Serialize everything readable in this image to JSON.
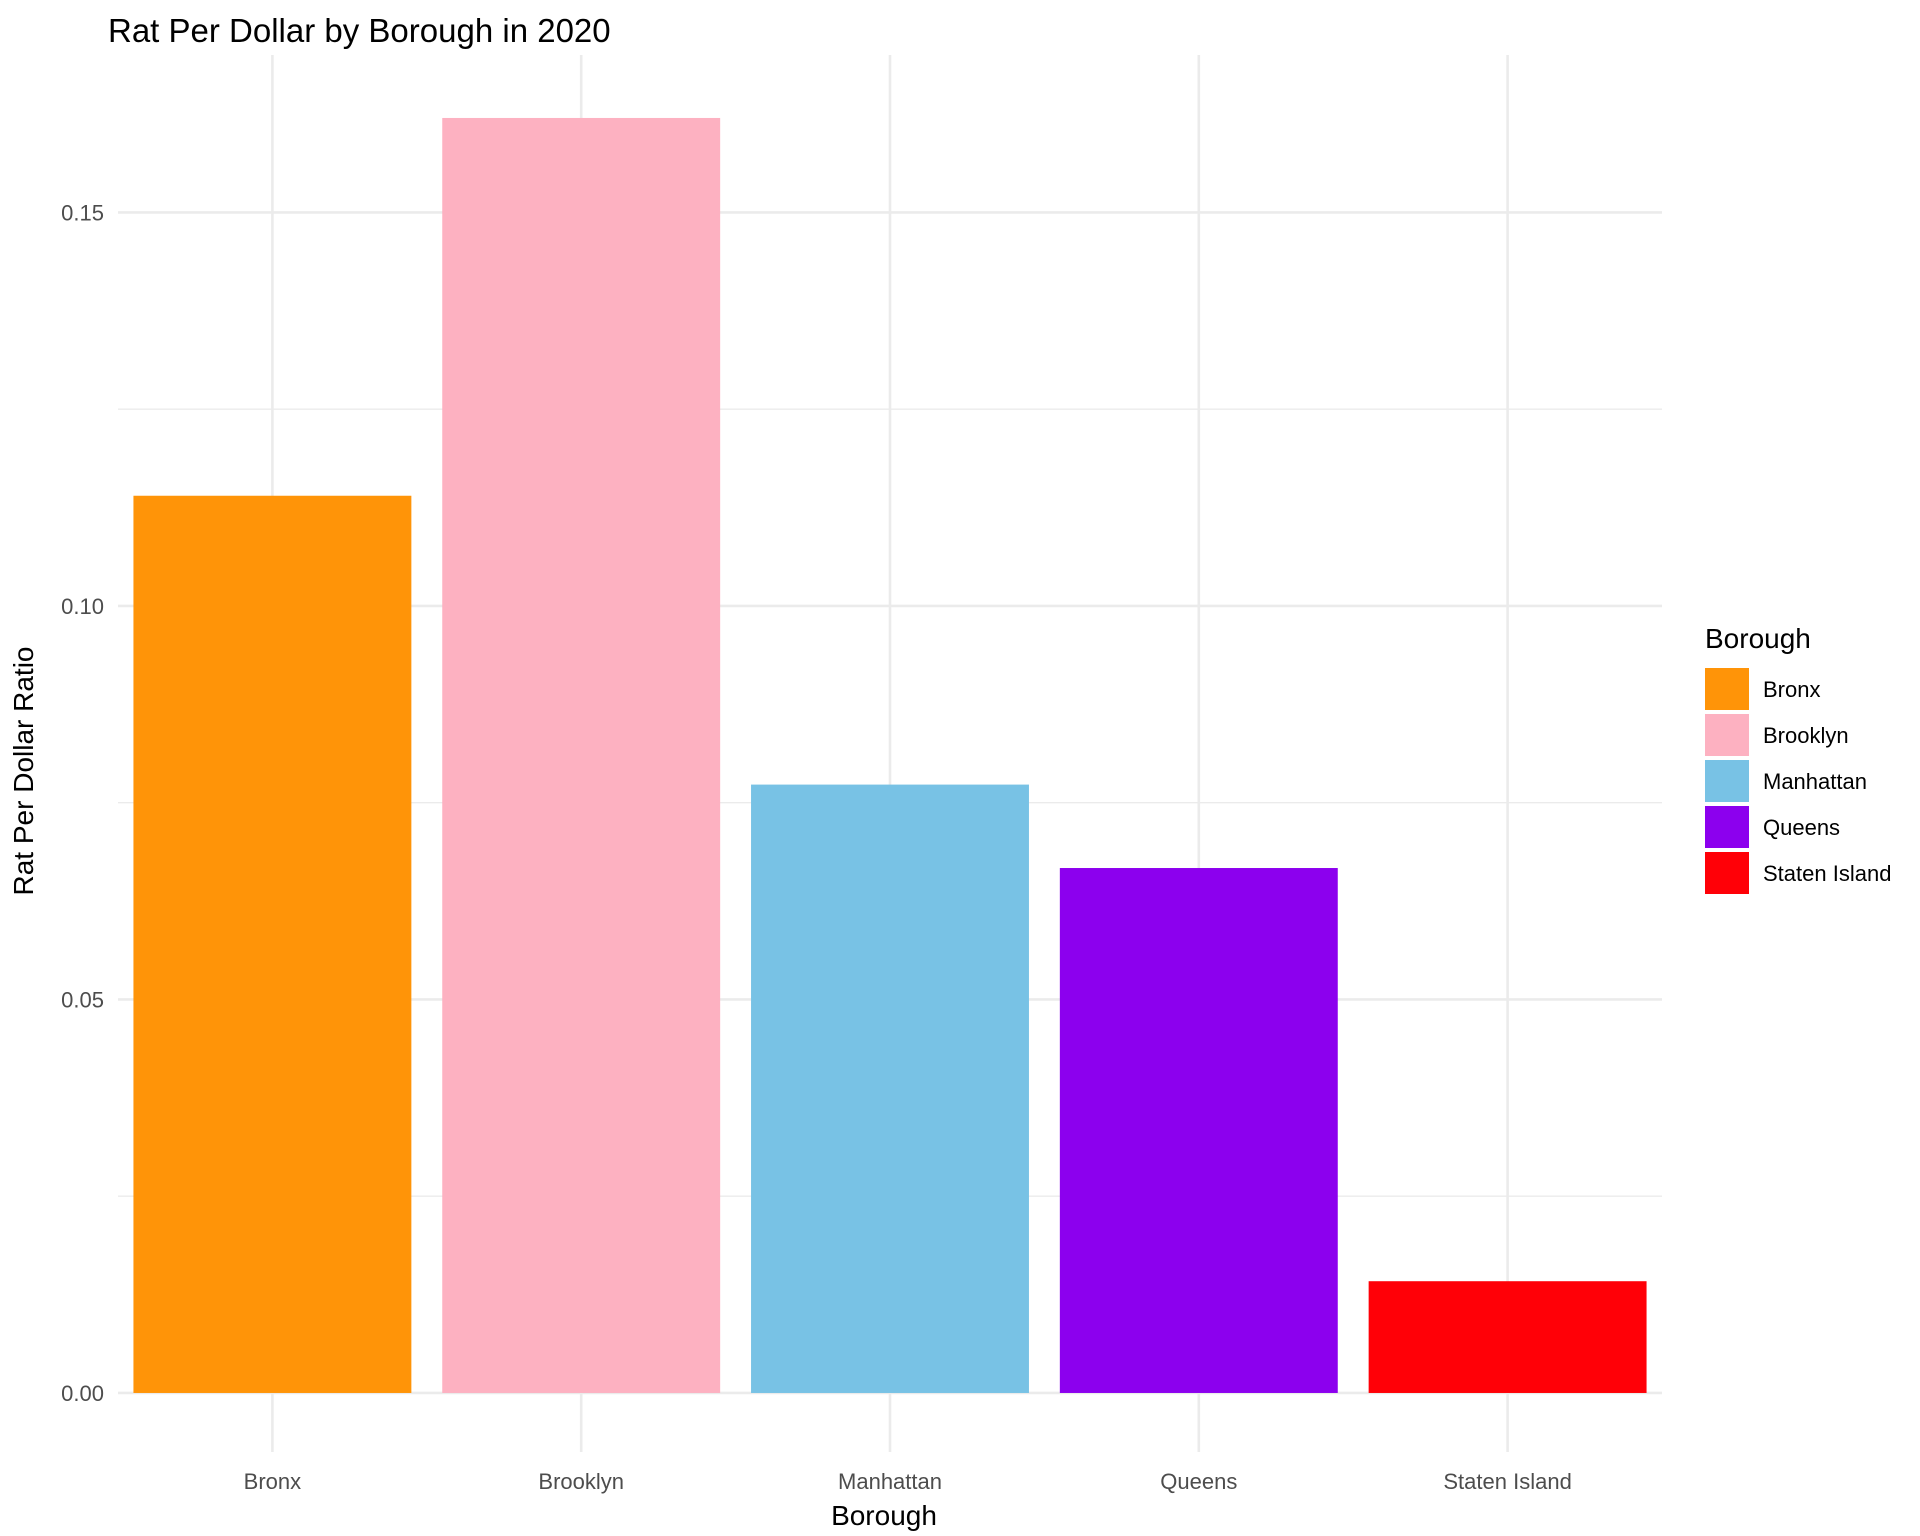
{
  "chart_data": {
    "type": "bar",
    "title": "Rat Per Dollar by Borough in 2020",
    "xlabel": "Borough",
    "ylabel": "Rat Per Dollar Ratio",
    "categories": [
      "Bronx",
      "Brooklyn",
      "Manhattan",
      "Queens",
      "Staten Island"
    ],
    "values": [
      0.114,
      0.162,
      0.0773,
      0.0667,
      0.0142
    ],
    "colors": [
      "#FF9408",
      "#FDB1C1",
      "#78C2E5",
      "#8C00EE",
      "#FF0007"
    ],
    "ylim": [
      -0.0075,
      0.17
    ],
    "yticks": [
      0,
      0.05,
      0.1,
      0.15
    ],
    "ytick_labels": [
      "0.00",
      "0.05",
      "0.10",
      "0.15"
    ],
    "grid": true,
    "legend": {
      "title": "Borough",
      "placement": "right",
      "entries": [
        "Bronx",
        "Brooklyn",
        "Manhattan",
        "Queens",
        "Staten Island"
      ]
    }
  }
}
